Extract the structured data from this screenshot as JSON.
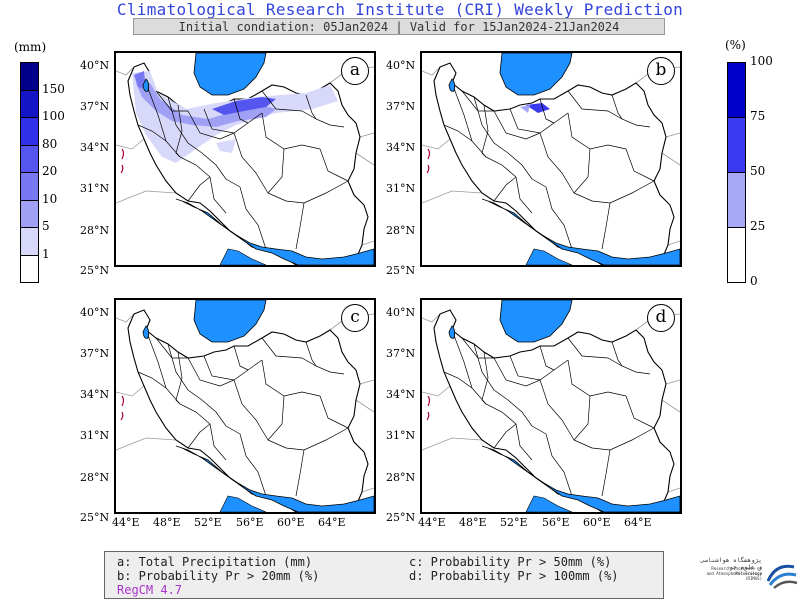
{
  "header": {
    "title": "Climatological Research Institute (CRI) Weekly Prediction",
    "subtitle": "Initial condiation: 05Jan2024 | Valid for 15Jan2024-21Jan2024"
  },
  "panels": [
    {
      "id": "a",
      "label": "a"
    },
    {
      "id": "b",
      "label": "b"
    },
    {
      "id": "c",
      "label": "c"
    },
    {
      "id": "d",
      "label": "d"
    }
  ],
  "lat_ticks": [
    "40°N",
    "37°N",
    "34°N",
    "31°N",
    "28°N",
    "25°N"
  ],
  "lon_ticks": [
    "44°E",
    "48°E",
    "52°E",
    "56°E",
    "60°E",
    "64°E"
  ],
  "precip_colorbar": {
    "unit": "(mm)",
    "levels": [
      "150",
      "100",
      "80",
      "20",
      "10",
      "5",
      "1"
    ],
    "colors": [
      "#00008b",
      "#1515c8",
      "#3030e8",
      "#5555f0",
      "#7878f2",
      "#a0a0f5",
      "#d8d8fa",
      "#ffffff"
    ]
  },
  "prob_colorbar": {
    "unit": "(%)",
    "levels": [
      "100",
      "75",
      "50",
      "25",
      "0"
    ],
    "colors": [
      "#0000cc",
      "#3a3af0",
      "#a8a8f8",
      "#ffffff"
    ]
  },
  "legend": {
    "a": "a: Total Precipitation (mm)",
    "b": "b: Probability Pr > 20mm (%)",
    "c": "c: Probability Pr > 50mm (%)",
    "d": "d: Probability Pr > 100mm (%)",
    "model": "RegCM 4.7"
  },
  "colors": {
    "water": "#1e90ff",
    "title": "#3344dd",
    "precip_light": "#c8c8f5",
    "precip_mid": "#8888ee",
    "precip_heavy": "#3030e8"
  },
  "logo": {
    "text_fa": "پژوهشگاه هواشناسی و علوم جو",
    "text_en_1": "Research Institute of Meteorology",
    "text_en_2": "and Atmospheric Science (RIMAS)"
  }
}
